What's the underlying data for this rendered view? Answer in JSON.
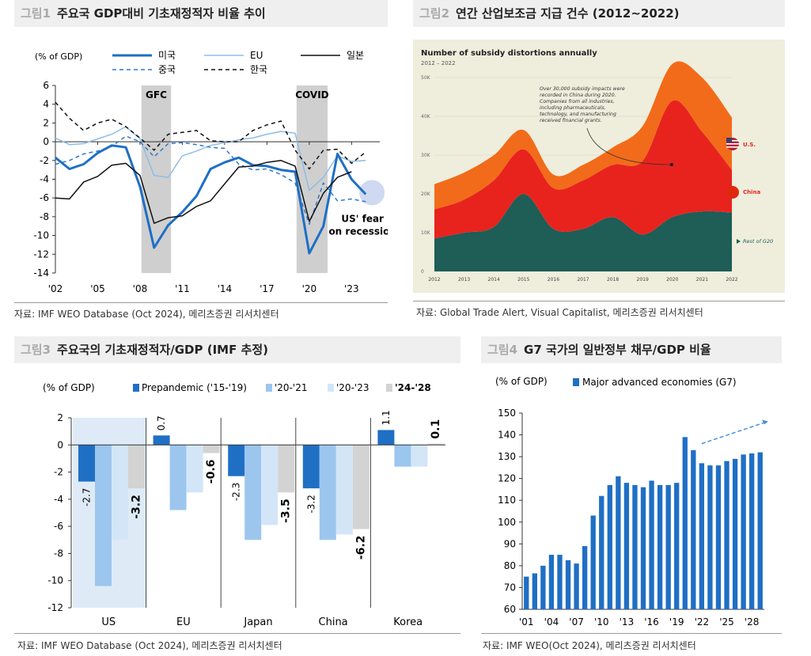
{
  "fig1": {
    "label": "그림1",
    "title": "주요국 GDP대비 기초재정적자 비율 추이",
    "source": "자료: IMF WEO Database (Oct 2024), 메리츠증권 리서치센터",
    "chart_data": {
      "type": "line",
      "ylabel": "(% of GDP)",
      "ylim": [
        -14,
        6
      ],
      "yticks": [
        6,
        4,
        2,
        0,
        -2,
        -4,
        -6,
        -8,
        -10,
        -12,
        -14
      ],
      "xlim": [
        2002,
        2025
      ],
      "xticks": [
        {
          "year": 2002,
          "label": "'02"
        },
        {
          "year": 2005,
          "label": "'05"
        },
        {
          "year": 2008,
          "label": "'08"
        },
        {
          "year": 2011,
          "label": "'11"
        },
        {
          "year": 2014,
          "label": "'14"
        },
        {
          "year": 2017,
          "label": "'17"
        },
        {
          "year": 2020,
          "label": "'20"
        },
        {
          "year": 2023,
          "label": "'23"
        }
      ],
      "shaded": [
        {
          "label": "GFC",
          "from": 2008.1,
          "to": 2010.2
        },
        {
          "label": "COVID",
          "from": 2019.1,
          "to": 2021.3
        }
      ],
      "annotation": {
        "line1": "US' fear",
        "line2": "on recession",
        "year": 2024.0,
        "value": -5.6
      },
      "series": [
        {
          "name": "미국",
          "color": "#1f6fc5",
          "width": 3,
          "dash": "",
          "x": [
            2002,
            2003,
            2004,
            2005,
            2006,
            2007,
            2008,
            2009,
            2010,
            2011,
            2012,
            2013,
            2014,
            2015,
            2016,
            2017,
            2018,
            2019,
            2020,
            2021,
            2022,
            2023,
            2024
          ],
          "y": [
            -1.7,
            -2.9,
            -2.4,
            -1.2,
            -0.4,
            -0.6,
            -4.8,
            -11.3,
            -8.9,
            -7.5,
            -5.8,
            -2.9,
            -2.2,
            -1.7,
            -2.5,
            -2.6,
            -3.0,
            -3.2,
            -11.9,
            -9.0,
            -1.3,
            -4.0,
            -5.6
          ]
        },
        {
          "name": "EU",
          "color": "#8dbde6",
          "width": 1.5,
          "dash": "",
          "x": [
            2002,
            2003,
            2004,
            2005,
            2006,
            2007,
            2008,
            2009,
            2010,
            2011,
            2012,
            2013,
            2014,
            2015,
            2016,
            2017,
            2018,
            2019,
            2020,
            2021,
            2022,
            2023,
            2024
          ],
          "y": [
            0.4,
            -0.3,
            -0.2,
            0.3,
            0.8,
            1.6,
            0.3,
            -3.6,
            -3.8,
            -1.5,
            -1.0,
            -0.4,
            -0.1,
            0.2,
            0.4,
            0.8,
            1.1,
            0.9,
            -5.2,
            -3.8,
            -1.5,
            -2.1,
            -2.0
          ]
        },
        {
          "name": "일본",
          "color": "#111111",
          "width": 1.5,
          "dash": "",
          "x": [
            2002,
            2003,
            2004,
            2005,
            2006,
            2007,
            2008,
            2009,
            2010,
            2011,
            2012,
            2013,
            2014,
            2015,
            2016,
            2017,
            2018,
            2019,
            2020,
            2021,
            2022,
            2023
          ],
          "y": [
            -6.0,
            -6.1,
            -4.3,
            -3.7,
            -2.5,
            -2.3,
            -3.6,
            -8.7,
            -8.1,
            -7.9,
            -6.9,
            -6.3,
            -4.5,
            -2.7,
            -2.6,
            -2.2,
            -2.0,
            -2.6,
            -8.5,
            -5.5,
            -3.8,
            -3.2
          ]
        },
        {
          "name": "중국",
          "color": "#2f79c9",
          "width": 1.5,
          "dash": "5,4",
          "x": [
            2002,
            2003,
            2004,
            2005,
            2006,
            2007,
            2008,
            2009,
            2010,
            2011,
            2012,
            2013,
            2014,
            2015,
            2016,
            2017,
            2018,
            2019,
            2020,
            2021,
            2022,
            2023,
            2024
          ],
          "y": [
            -2.4,
            -2.0,
            -1.3,
            -1.0,
            -0.5,
            0.6,
            0.0,
            -1.6,
            -0.2,
            -0.1,
            -0.3,
            -0.6,
            -0.7,
            -2.4,
            -3.0,
            -2.9,
            -3.5,
            -4.4,
            -8.8,
            -4.4,
            -6.3,
            -6.1,
            -6.4
          ]
        },
        {
          "name": "한국",
          "color": "#111111",
          "width": 1.5,
          "dash": "5,4",
          "x": [
            2002,
            2003,
            2004,
            2005,
            2006,
            2007,
            2008,
            2009,
            2010,
            2011,
            2012,
            2013,
            2014,
            2015,
            2016,
            2017,
            2018,
            2019,
            2020,
            2021,
            2022,
            2023,
            2024
          ],
          "y": [
            4.2,
            2.5,
            1.2,
            2.0,
            2.4,
            1.6,
            0.4,
            -0.9,
            0.8,
            1.0,
            1.2,
            0.1,
            0.0,
            0.0,
            1.2,
            1.8,
            2.2,
            -0.9,
            -2.9,
            -0.9,
            -0.8,
            -2.3,
            -1.1
          ]
        }
      ]
    }
  },
  "fig2": {
    "label": "그림2",
    "title": "연간 산업보조금 지급 건수 (2012~2022)",
    "source": "자료: Global Trade Alert, Visual Capitalist, 메리츠증권 리서치센터",
    "inner_title": "Number of subsidy distortions annually",
    "inner_subtitle": "2012 – 2022",
    "callout": "Over 30,000 subsidy impacts were recorded in China during 2020. Companies from all industries, including pharmaceuticals, technology, and manufacturing received financial grants.",
    "label_us": "U.S.",
    "label_china": "China",
    "label_rest": "Rest of G20",
    "colors": {
      "bg": "#efeedd",
      "rest": "#1f5d57",
      "china": "#e8231e",
      "us": "#f26b1a"
    },
    "chart_data": {
      "type": "area",
      "ylim": [
        0,
        50000
      ],
      "yticks": [
        {
          "v": 0,
          "label": "0"
        },
        {
          "v": 10000,
          "label": "10K"
        },
        {
          "v": 20000,
          "label": "20K"
        },
        {
          "v": 30000,
          "label": "30K"
        },
        {
          "v": 40000,
          "label": "40K"
        },
        {
          "v": 50000,
          "label": "50K"
        }
      ],
      "categories": [
        "2012",
        "2013",
        "2014",
        "2015",
        "2016",
        "2017",
        "2018",
        "2019",
        "2020",
        "2021",
        "2022"
      ],
      "series": [
        {
          "name": "Rest of G20",
          "values": [
            8500,
            10000,
            11500,
            20000,
            11000,
            11000,
            14000,
            9500,
            14000,
            15500,
            15200
          ]
        },
        {
          "name": "China",
          "values": [
            7500,
            8500,
            12000,
            11500,
            10500,
            12500,
            13500,
            19000,
            30000,
            20500,
            11000
          ]
        },
        {
          "name": "U.S.",
          "values": [
            6500,
            7000,
            6500,
            5000,
            3500,
            4000,
            4500,
            9000,
            9500,
            14000,
            13500
          ]
        }
      ]
    }
  },
  "fig3": {
    "label": "그림3",
    "title": "주요국의 기초재정적자/GDP (IMF 추정)",
    "source": "자료: IMF WEO Database (Oct 2024), 메리츠증권 리서치센터",
    "chart_data": {
      "type": "bar",
      "ylabel": "(% of GDP)",
      "ylim": [
        -12,
        2
      ],
      "yticks": [
        2,
        0,
        -2,
        -4,
        -6,
        -8,
        -10,
        -12
      ],
      "categories": [
        "US",
        "EU",
        "Japan",
        "China",
        "Korea"
      ],
      "series": [
        {
          "name": "Prepandemic ('15-'19)",
          "color": "#1f6fc5",
          "values": [
            -2.7,
            0.7,
            -2.3,
            -3.2,
            1.1
          ],
          "labels": [
            "-2.7",
            "0.7",
            "-2.3",
            "-3.2",
            "1.1"
          ]
        },
        {
          "name": "'20-'21",
          "color": "#9cc6ee",
          "values": [
            -10.4,
            -4.8,
            -7.0,
            -7.0,
            -1.6
          ]
        },
        {
          "name": "'20-'23",
          "color": "#d3e6f8",
          "values": [
            -7.0,
            -3.5,
            -5.9,
            -6.6,
            -1.6
          ]
        },
        {
          "name": "'24-'28",
          "color": "#d3d3d3",
          "bold": true,
          "values": [
            -3.2,
            -0.6,
            -3.5,
            -6.2,
            0.1
          ],
          "labels": [
            "-3.2",
            "-0.6",
            "-3.5",
            "-6.2",
            "0.1"
          ]
        }
      ]
    }
  },
  "fig4": {
    "label": "그림4",
    "title": "G7 국가의 일반정부 채무/GDP 비율",
    "source": "자료: IMF WEO(Oct 2024), 메리츠증권 리서치센터",
    "chart_data": {
      "type": "bar",
      "ylabel": "(% of GDP)",
      "ylim": [
        60,
        150
      ],
      "yticks": [
        150,
        140,
        130,
        120,
        110,
        100,
        90,
        80,
        70,
        60
      ],
      "series_name": "Major advanced economies (G7)",
      "color": "#1f6fc5",
      "x": [
        2001,
        2002,
        2003,
        2004,
        2005,
        2006,
        2007,
        2008,
        2009,
        2010,
        2011,
        2012,
        2013,
        2014,
        2015,
        2016,
        2017,
        2018,
        2019,
        2020,
        2021,
        2022,
        2023,
        2024,
        2025,
        2026,
        2027,
        2028,
        2029
      ],
      "values": [
        75,
        76.5,
        80,
        85,
        85,
        82.5,
        81,
        89,
        103,
        112,
        117,
        121,
        118,
        117,
        116,
        119,
        117,
        117,
        118,
        139,
        133,
        127,
        126,
        126,
        128,
        129,
        131,
        131.5,
        132
      ],
      "xticklabels": [
        {
          "year": 2001,
          "label": "'01"
        },
        {
          "year": 2004,
          "label": "'04"
        },
        {
          "year": 2007,
          "label": "'07"
        },
        {
          "year": 2010,
          "label": "'10"
        },
        {
          "year": 2013,
          "label": "'13"
        },
        {
          "year": 2016,
          "label": "'16"
        },
        {
          "year": 2019,
          "label": "'19"
        },
        {
          "year": 2022,
          "label": "'22"
        },
        {
          "year": 2025,
          "label": "'25"
        },
        {
          "year": 2028,
          "label": "'28"
        }
      ]
    }
  }
}
